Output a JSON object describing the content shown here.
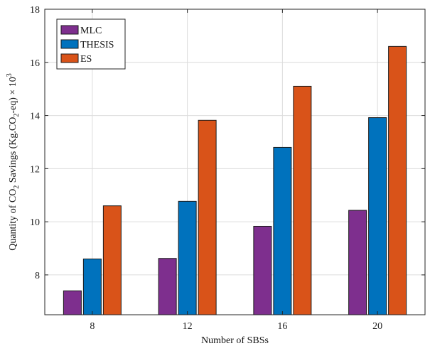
{
  "chart_data": {
    "type": "bar",
    "title": "",
    "xlabel": "Number of SBSs",
    "ylabel": "Quantity of CO2 Savings (Kg.CO2-eq) × 10^3",
    "ylabel_parts": [
      "Quantity of CO",
      "2",
      " Savings (Kg.CO",
      "2",
      "-eq) × 10",
      "3"
    ],
    "categories": [
      "8",
      "12",
      "16",
      "20"
    ],
    "ylim": [
      6.5,
      18
    ],
    "yticks": [
      8,
      10,
      12,
      14,
      16,
      18
    ],
    "grid": true,
    "legend_position": "top-left",
    "series": [
      {
        "name": "MLC",
        "color": "#7e2f8e",
        "values": [
          7.4,
          8.62,
          9.83,
          10.43
        ]
      },
      {
        "name": "THESIS",
        "color": "#0072bd",
        "values": [
          8.6,
          10.77,
          12.8,
          13.92
        ]
      },
      {
        "name": "ES",
        "color": "#d95319",
        "values": [
          10.6,
          13.82,
          15.1,
          16.6
        ]
      }
    ]
  }
}
